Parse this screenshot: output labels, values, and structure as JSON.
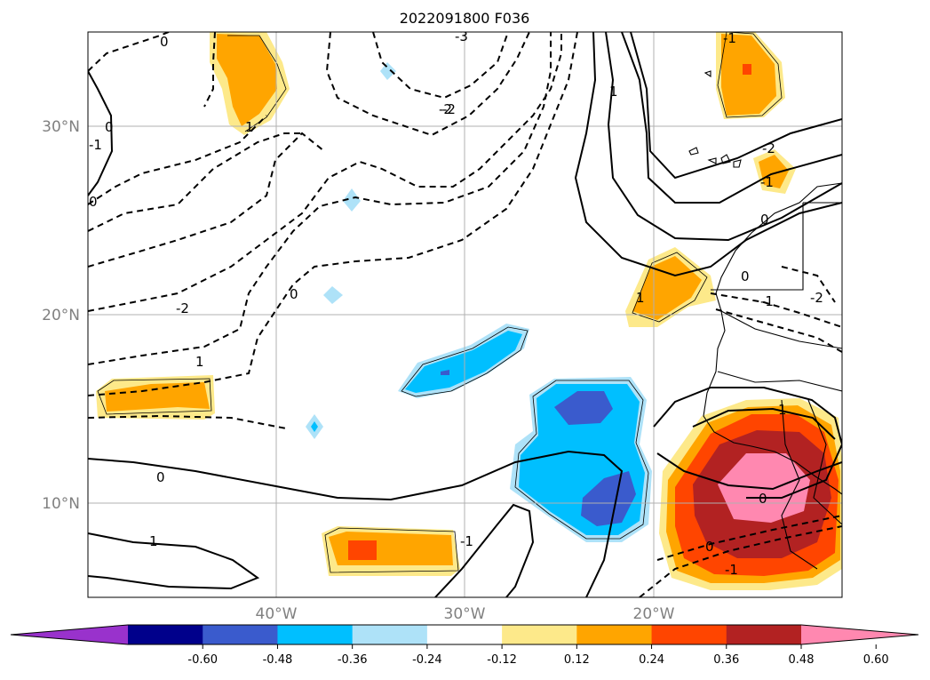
{
  "chart_data": {
    "type": "map-contour",
    "title": "2022091800 F036",
    "lat_ticks": [
      {
        "value": 30,
        "label": "30°N"
      },
      {
        "value": 20,
        "label": "20°N"
      },
      {
        "value": 10,
        "label": "10°N"
      }
    ],
    "lon_ticks": [
      {
        "value": -40,
        "label": "40°W"
      },
      {
        "value": -30,
        "label": "30°W"
      },
      {
        "value": -20,
        "label": "20°W"
      }
    ],
    "extent": {
      "lon_min": -50,
      "lon_max": -10,
      "lat_min": 5,
      "lat_max": 35
    },
    "grid": true,
    "colorbar": {
      "orientation": "horizontal",
      "extend": "both",
      "ticks": [
        "-0.60",
        "-0.48",
        "-0.36",
        "-0.24",
        "-0.12",
        "0.12",
        "0.24",
        "0.36",
        "0.48",
        "0.60"
      ],
      "colors": [
        "#9932cc",
        "#00008b",
        "#3a5bcd",
        "#00bfff",
        "#aee2f8",
        "#ffffff",
        "#fde98a",
        "#ffa500",
        "#ff4500",
        "#b22222",
        "#ff88b0"
      ]
    },
    "contour_labels": [
      "0",
      "-3",
      "-2",
      "1",
      "0",
      "1",
      "-1",
      "0",
      "-1",
      "-2",
      "-1",
      "0",
      "0",
      "-1",
      "-2",
      "0",
      "1",
      "1",
      "-2",
      "-2",
      "0",
      "1",
      "-1",
      "1",
      "0",
      "0",
      "-1"
    ]
  }
}
